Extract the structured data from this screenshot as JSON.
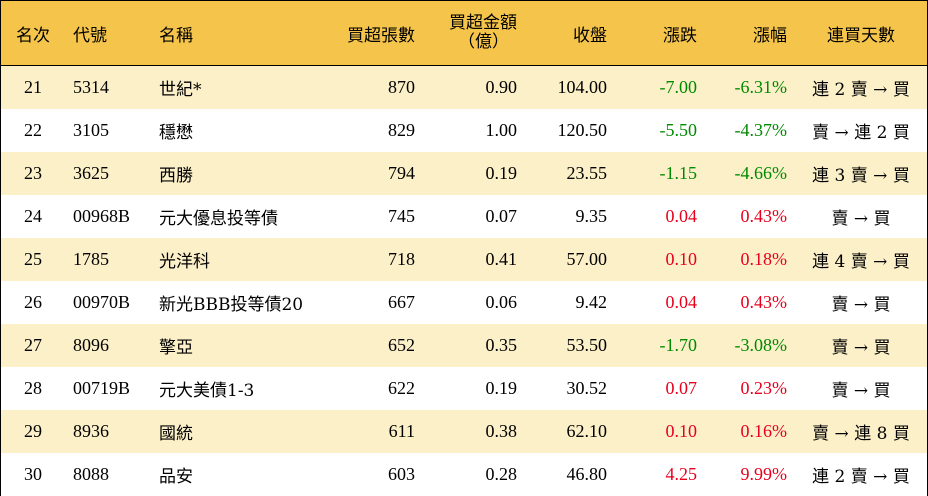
{
  "header": {
    "rank": "名次",
    "code": "代號",
    "name": "名稱",
    "volume": "買超張數",
    "amount_line1": "買超金額",
    "amount_line2": "（億）",
    "close": "收盤",
    "change": "漲跌",
    "pct": "漲幅",
    "days": "連買天數"
  },
  "colors": {
    "header_bg": "#f5c44a",
    "stripe_bg": "#fbf0c8",
    "up": "#e8001c",
    "down": "#008a00"
  },
  "rows": [
    {
      "rank": "21",
      "code": "5314",
      "name": "世紀*",
      "volume": "870",
      "amount": "0.90",
      "close": "104.00",
      "change": "-7.00",
      "pct": "-6.31%",
      "days": "連 2 賣 → 買",
      "dir": "down"
    },
    {
      "rank": "22",
      "code": "3105",
      "name": "穩懋",
      "volume": "829",
      "amount": "1.00",
      "close": "120.50",
      "change": "-5.50",
      "pct": "-4.37%",
      "days": "賣 → 連 2 買",
      "dir": "down"
    },
    {
      "rank": "23",
      "code": "3625",
      "name": "西勝",
      "volume": "794",
      "amount": "0.19",
      "close": "23.55",
      "change": "-1.15",
      "pct": "-4.66%",
      "days": "連 3 賣 → 買",
      "dir": "down"
    },
    {
      "rank": "24",
      "code": "00968B",
      "name": "元大優息投等債",
      "volume": "745",
      "amount": "0.07",
      "close": "9.35",
      "change": "0.04",
      "pct": "0.43%",
      "days": "賣 → 買",
      "dir": "up"
    },
    {
      "rank": "25",
      "code": "1785",
      "name": "光洋科",
      "volume": "718",
      "amount": "0.41",
      "close": "57.00",
      "change": "0.10",
      "pct": "0.18%",
      "days": "連 4 賣 → 買",
      "dir": "up"
    },
    {
      "rank": "26",
      "code": "00970B",
      "name": "新光BBB投等債20",
      "volume": "667",
      "amount": "0.06",
      "close": "9.42",
      "change": "0.04",
      "pct": "0.43%",
      "days": "賣 → 買",
      "dir": "up"
    },
    {
      "rank": "27",
      "code": "8096",
      "name": "擎亞",
      "volume": "652",
      "amount": "0.35",
      "close": "53.50",
      "change": "-1.70",
      "pct": "-3.08%",
      "days": "賣 → 買",
      "dir": "down"
    },
    {
      "rank": "28",
      "code": "00719B",
      "name": "元大美債1-3",
      "volume": "622",
      "amount": "0.19",
      "close": "30.52",
      "change": "0.07",
      "pct": "0.23%",
      "days": "賣 → 買",
      "dir": "up"
    },
    {
      "rank": "29",
      "code": "8936",
      "name": "國統",
      "volume": "611",
      "amount": "0.38",
      "close": "62.10",
      "change": "0.10",
      "pct": "0.16%",
      "days": "賣 → 連 8 買",
      "dir": "up"
    },
    {
      "rank": "30",
      "code": "8088",
      "name": "品安",
      "volume": "603",
      "amount": "0.28",
      "close": "46.80",
      "change": "4.25",
      "pct": "9.99%",
      "days": "連 2 賣 → 買",
      "dir": "up"
    }
  ]
}
